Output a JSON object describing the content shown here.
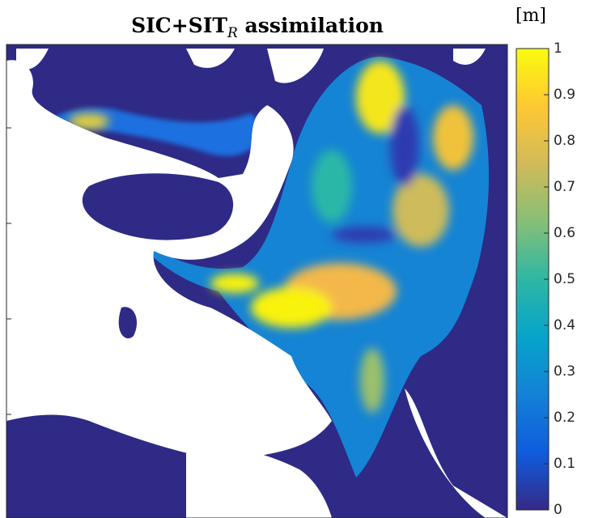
{
  "chart_data": {
    "type": "heatmap",
    "title_parts": [
      "SIC+SIT",
      "R",
      "assimilation"
    ],
    "colorbar_label": "[m]",
    "clim": [
      0,
      1
    ],
    "cticks": [
      0,
      0.1,
      0.2,
      0.3,
      0.4,
      0.5,
      0.6,
      0.7,
      0.8,
      0.9,
      1
    ],
    "colormap": [
      "#352a87",
      "#0f5cdd",
      "#1481d6",
      "#06a4ca",
      "#2eb7a4",
      "#87bf77",
      "#d1bb59",
      "#fec832",
      "#f9fb0e"
    ]
  }
}
